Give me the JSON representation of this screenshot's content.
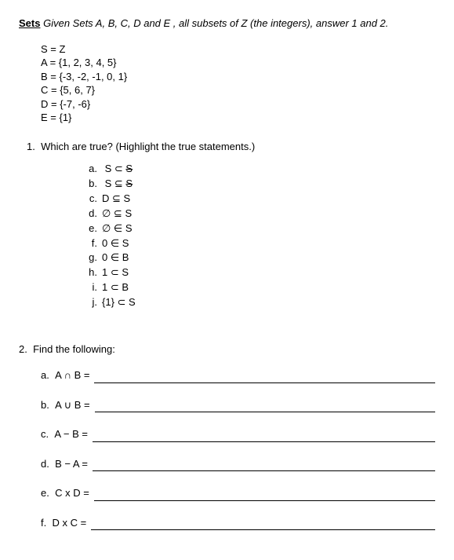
{
  "header": {
    "title": "Sets",
    "instruction": "Given Sets A, B, C, D and E , all subsets of Z (the integers), answer 1 and 2."
  },
  "set_definitions": {
    "S": "S = Z",
    "A": "A = {1, 2, 3, 4, 5}",
    "B": "B = {-3, -2, -1, 0, 1}",
    "C": "C = {5, 6, 7}",
    "D": "D = {-7, -6}",
    "E": "E = {1}"
  },
  "question1": {
    "number": "1.",
    "prompt": "Which are true?  (Highlight the true statements.)",
    "options": {
      "a": {
        "label": "a.",
        "text_pre": "S ⊂ ",
        "text_strike": "S"
      },
      "b": {
        "label": "b.",
        "text_pre": "S ⊆ ",
        "text_strike": "S"
      },
      "c": {
        "label": "c.",
        "text": "D ⊆ S"
      },
      "d": {
        "label": "d.",
        "text": "∅ ⊆ S"
      },
      "e": {
        "label": "e.",
        "text": "∅ ∈ S"
      },
      "f": {
        "label": "f.",
        "text": "0 ∈ S"
      },
      "g": {
        "label": "g.",
        "text": "0 ∈ B"
      },
      "h": {
        "label": "h.",
        "text": "1 ⊂ S"
      },
      "i": {
        "label": "i.",
        "text": "1 ⊂ B"
      },
      "j": {
        "label": "j.",
        "text": "{1} ⊂ S"
      }
    }
  },
  "question2": {
    "number": "2.",
    "prompt": "Find the following:",
    "items": {
      "a": {
        "label": "a.",
        "text": "A ∩ B  ="
      },
      "b": {
        "label": "b.",
        "text": "A ∪ B ="
      },
      "c": {
        "label": "c.",
        "text": "A − B ="
      },
      "d": {
        "label": "d.",
        "text": "B − A ="
      },
      "e": {
        "label": "e.",
        "text": "C x D ="
      },
      "f": {
        "label": "f.",
        "text": "D x C ="
      }
    }
  },
  "style": {
    "font_family": "Arial",
    "font_size": 13,
    "text_color": "#000000",
    "background_color": "#ffffff",
    "underline_color": "#000000"
  }
}
